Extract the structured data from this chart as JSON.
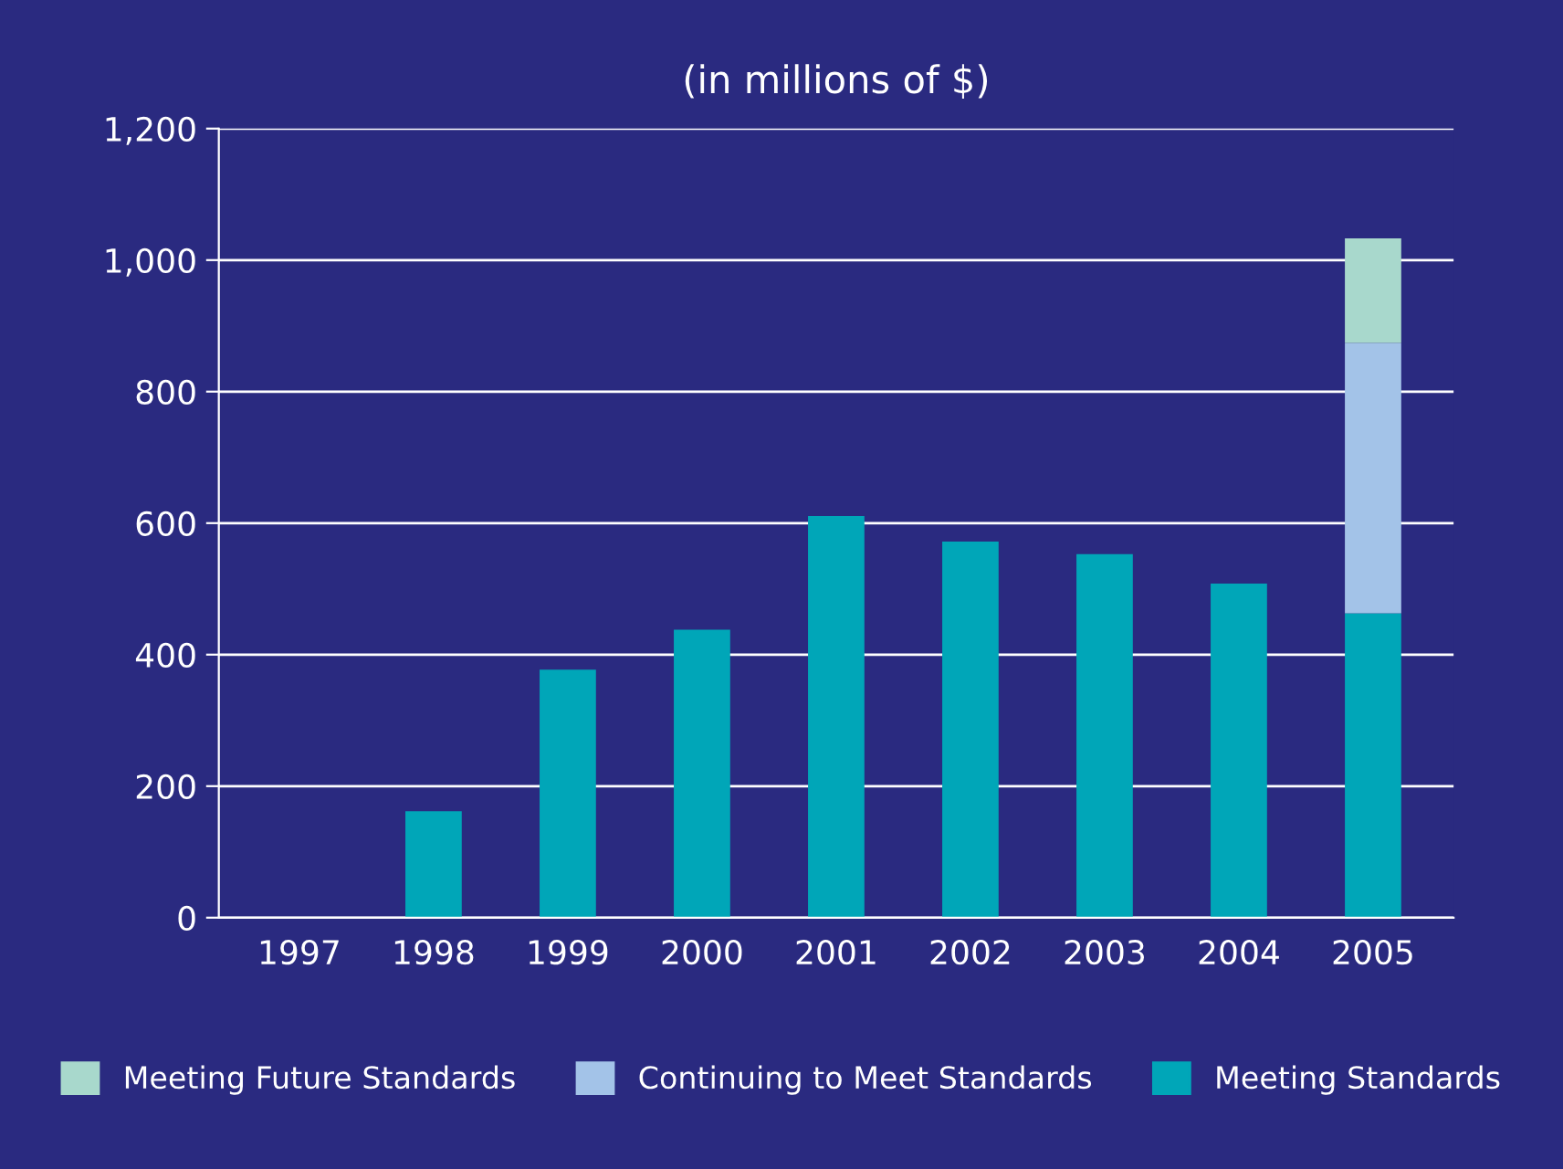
{
  "chart_data": {
    "type": "bar",
    "title": "(in millions of $)",
    "stacked": true,
    "categories": [
      "1997",
      "1998",
      "1999",
      "2000",
      "2001",
      "2002",
      "2003",
      "2004",
      "2005"
    ],
    "series": [
      {
        "name": "Meeting Standards",
        "color": "#00a6b8",
        "values": [
          null,
          162,
          377,
          438,
          611,
          572,
          553,
          508,
          463
        ]
      },
      {
        "name": "Continuing to Meet Standards",
        "color": "#a3c3e8",
        "values": [
          null,
          null,
          null,
          null,
          null,
          null,
          null,
          null,
          411
        ]
      },
      {
        "name": "Meeting Future Standards",
        "color": "#a8d8cc",
        "values": [
          null,
          null,
          null,
          null,
          null,
          null,
          null,
          null,
          159
        ]
      }
    ],
    "ylim": [
      0,
      1200
    ],
    "yticks": [
      0,
      200,
      400,
      600,
      800,
      {
        "value": 1000,
        "label": "1,000"
      },
      {
        "value": 1200,
        "label": "1,200"
      }
    ],
    "grid": "y",
    "legend": "bottom"
  }
}
